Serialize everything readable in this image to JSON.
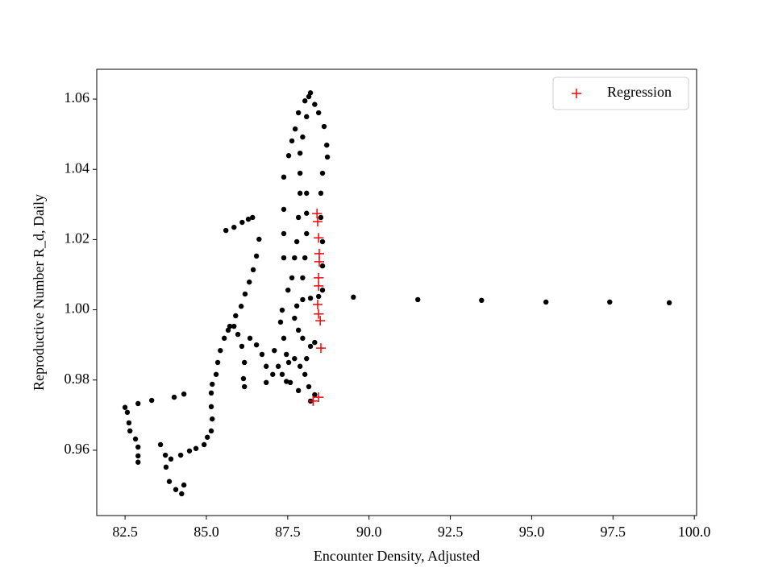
{
  "chart_data": {
    "type": "scatter",
    "x_label": "Encounter Density, Adjusted",
    "y_label": "Reproductive Number R_d, Daily",
    "xlim": [
      81.63,
      100.07
    ],
    "ylim": [
      0.9414,
      1.0685
    ],
    "xticks": [
      82.5,
      {
        "value": 85,
        "label": "85.0"
      },
      87.5,
      {
        "value": 90,
        "label": "90.0"
      },
      92.5,
      {
        "value": 95,
        "label": "95.0"
      },
      97.5,
      {
        "value": 100,
        "label": "100.0"
      }
    ],
    "yticks": [
      0.96,
      0.98,
      {
        "value": 1.0,
        "label": "1.00"
      },
      1.02,
      1.04,
      1.06
    ],
    "legend": "upper right",
    "grid": false,
    "series": [
      {
        "color": "#000000",
        "marker": "o",
        "x": [
          89.52,
          91.5,
          93.46,
          95.44,
          97.4,
          99.23,
          82.5,
          82.57,
          82.62,
          82.65,
          82.82,
          82.9,
          82.9,
          82.9,
          82.9,
          83.32,
          84.01,
          84.31,
          83.59,
          83.74,
          83.76,
          83.86,
          84.06,
          84.24,
          84.31,
          83.91,
          84.21,
          84.48,
          84.68,
          84.93,
          85.03,
          85.15,
          85.18,
          85.15,
          85.15,
          85.18,
          85.3,
          85.35,
          85.43,
          85.55,
          85.72,
          85.9,
          86.07,
          86.19,
          86.32,
          86.44,
          86.54,
          86.62,
          85.6,
          85.85,
          86.1,
          86.29,
          86.42,
          85.67,
          85.85,
          85.97,
          86.09,
          86.17,
          86.14,
          86.17,
          86.34,
          86.54,
          86.71,
          86.84,
          86.84,
          87.04,
          87.09,
          87.21,
          87.33,
          87.46,
          87.53,
          87.38,
          87.28,
          87.33,
          87.51,
          87.63,
          87.71,
          87.78,
          87.83,
          87.88,
          87.88,
          87.88,
          87.96,
          88.08,
          88.15,
          88.03,
          87.83,
          87.73,
          87.63,
          87.53,
          87.38,
          87.38,
          87.38,
          87.38,
          88.2,
          88.33,
          88.45,
          88.62,
          88.7,
          88.72,
          88.57,
          88.52,
          88.52,
          88.57,
          88.57,
          88.57,
          88.45,
          88.2,
          87.96,
          88.08,
          88.08,
          88.08,
          88.03,
          87.96,
          87.78,
          87.71,
          87.83,
          87.96,
          88.2,
          88.33,
          88.08,
          88.03,
          88.15,
          88.33,
          88.2,
          87.83,
          87.58,
          87.88,
          87.71,
          87.46
        ],
        "values": [
          1.0036,
          1.0029,
          1.0027,
          1.0022,
          1.0022,
          1.002,
          0.9722,
          0.9708,
          0.9678,
          0.9655,
          0.9632,
          0.9609,
          0.9584,
          0.9566,
          0.9733,
          0.9742,
          0.9751,
          0.976,
          0.9616,
          0.9586,
          0.9552,
          0.9511,
          0.9488,
          0.9476,
          0.9501,
          0.9575,
          0.9586,
          0.9598,
          0.9605,
          0.9616,
          0.9637,
          0.9655,
          0.9689,
          0.9724,
          0.9763,
          0.9788,
          0.9816,
          0.985,
          0.9884,
          0.9919,
          0.9953,
          0.9983,
          1.001,
          1.0045,
          1.0079,
          1.0114,
          1.0153,
          1.0201,
          1.0226,
          1.0235,
          1.0249,
          1.0258,
          1.0263,
          0.9942,
          0.9953,
          0.993,
          0.9896,
          0.985,
          0.9804,
          0.9781,
          0.9919,
          0.99,
          0.9873,
          0.9839,
          0.9793,
          0.9816,
          0.9884,
          0.9839,
          0.9816,
          0.9796,
          0.985,
          0.9919,
          0.9965,
          0.9999,
          1.0056,
          1.0091,
          1.0148,
          1.0194,
          1.0263,
          1.0332,
          1.0389,
          1.0446,
          1.0492,
          1.055,
          1.0607,
          1.0595,
          1.0561,
          1.0515,
          1.0481,
          1.0439,
          1.0378,
          1.0286,
          1.0217,
          1.0148,
          1.0618,
          1.0585,
          1.0561,
          1.0522,
          1.0469,
          1.0435,
          1.0389,
          1.0332,
          1.0263,
          1.0194,
          1.0125,
          1.0056,
          1.0038,
          1.0033,
          1.0029,
          1.0332,
          1.0275,
          1.0217,
          1.0148,
          1.0091,
          1.0011,
          0.9976,
          0.9942,
          0.9919,
          0.9896,
          0.9907,
          0.9861,
          0.9816,
          0.9781,
          0.9758,
          0.974,
          0.977,
          0.9793,
          0.9839,
          0.9861,
          0.9873
        ]
      },
      {
        "name": "Regression",
        "color": "#ff0000",
        "marker": "+",
        "x": [
          88.4,
          88.42,
          88.45,
          88.47,
          88.47,
          88.45,
          88.45,
          88.42,
          88.45,
          88.5,
          88.52,
          88.45,
          88.28
        ],
        "values": [
          1.0274,
          1.0251,
          1.0205,
          1.016,
          1.0137,
          1.0091,
          1.0068,
          1.0015,
          0.9988,
          0.9969,
          0.9891,
          0.9751,
          0.974
        ]
      }
    ]
  }
}
